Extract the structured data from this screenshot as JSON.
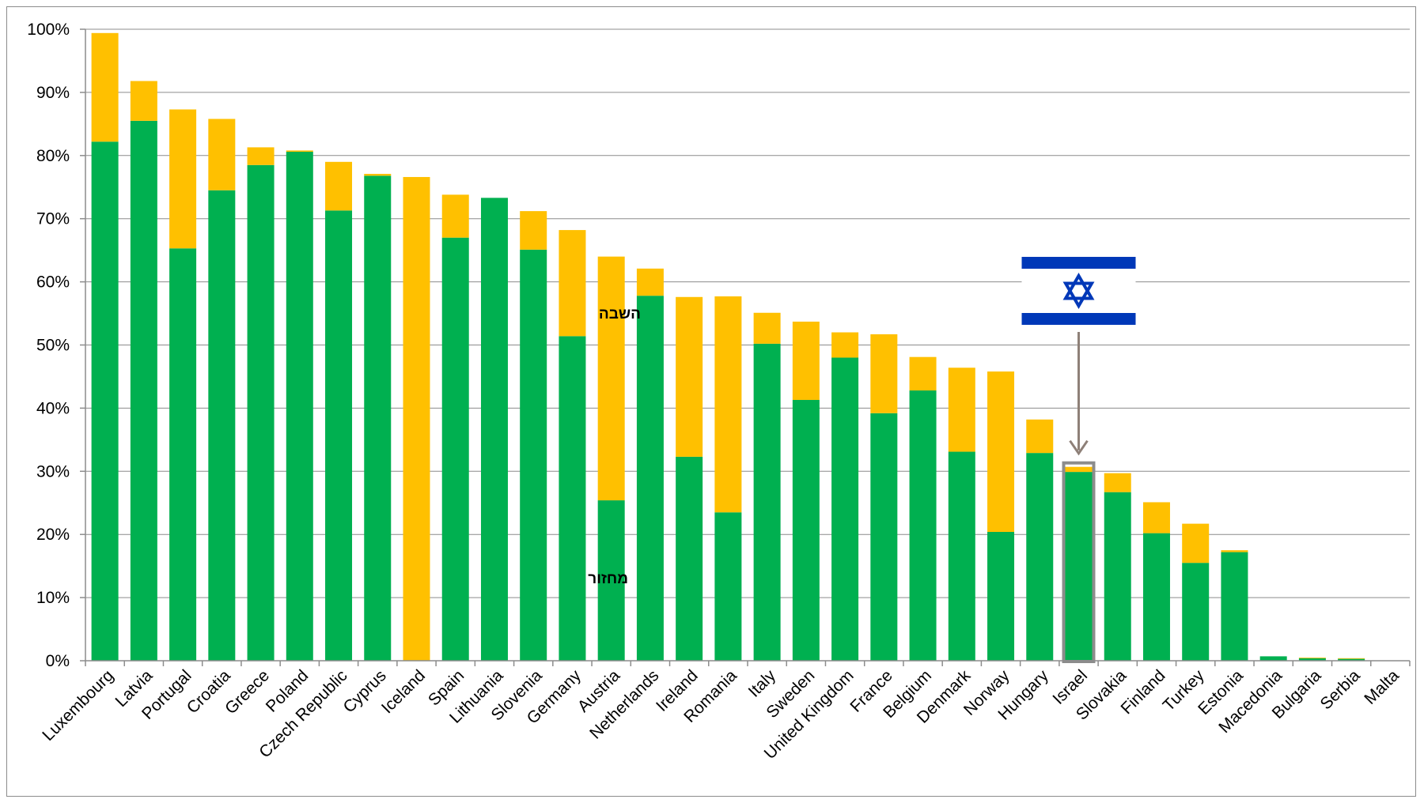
{
  "chart_data": {
    "type": "bar",
    "stacked": true,
    "categories": [
      "Luxembourg",
      "Latvia",
      "Portugal",
      "Croatia",
      "Greece",
      "Poland",
      "Czech Republic",
      "Cyprus",
      "Iceland",
      "Spain",
      "Lithuania",
      "Slovenia",
      "Germany",
      "Austria",
      "Netherlands",
      "Ireland",
      "Romania",
      "Italy",
      "Sweden",
      "United Kingdom",
      "France",
      "Belgium",
      "Denmark",
      "Norway",
      "Hungary",
      "Israel",
      "Slovakia",
      "Finland",
      "Turkey",
      "Estonia",
      "Macedonia",
      "Bulgaria",
      "Serbia",
      "Malta"
    ],
    "series": [
      {
        "name": "מחזור",
        "color": "#00b050",
        "values": [
          82.2,
          85.5,
          65.3,
          74.5,
          78.5,
          80.6,
          71.3,
          76.8,
          0,
          67.0,
          73.3,
          65.1,
          51.4,
          25.4,
          57.8,
          32.3,
          23.5,
          50.2,
          41.3,
          48.0,
          39.2,
          42.8,
          33.1,
          20.4,
          32.9,
          29.9,
          26.7,
          20.2,
          15.5,
          17.2,
          0.7,
          0.4,
          0.3,
          0
        ]
      },
      {
        "name": "השבה",
        "color": "#ffc000",
        "values": [
          17.2,
          6.3,
          22.0,
          11.3,
          2.8,
          0.2,
          7.7,
          0.3,
          76.6,
          6.8,
          0,
          6.1,
          16.8,
          38.6,
          4.3,
          25.3,
          34.2,
          4.9,
          12.4,
          4.0,
          12.5,
          5.3,
          13.3,
          25.4,
          5.3,
          0.8,
          3.0,
          4.9,
          6.2,
          0.3,
          0,
          0.1,
          0.1,
          0
        ]
      }
    ],
    "ylim": [
      0,
      100
    ],
    "yticks": [
      "0%",
      "10%",
      "20%",
      "30%",
      "40%",
      "50%",
      "60%",
      "70%",
      "80%",
      "90%",
      "100%"
    ],
    "grid": true,
    "highlight": "Israel",
    "annotations": {
      "recovery_label": "השבה",
      "recycling_label": "מחזור"
    },
    "highlight_color": "#8c8c8c",
    "flag_colors": {
      "blue": "#0038b8",
      "white": "#ffffff"
    }
  }
}
